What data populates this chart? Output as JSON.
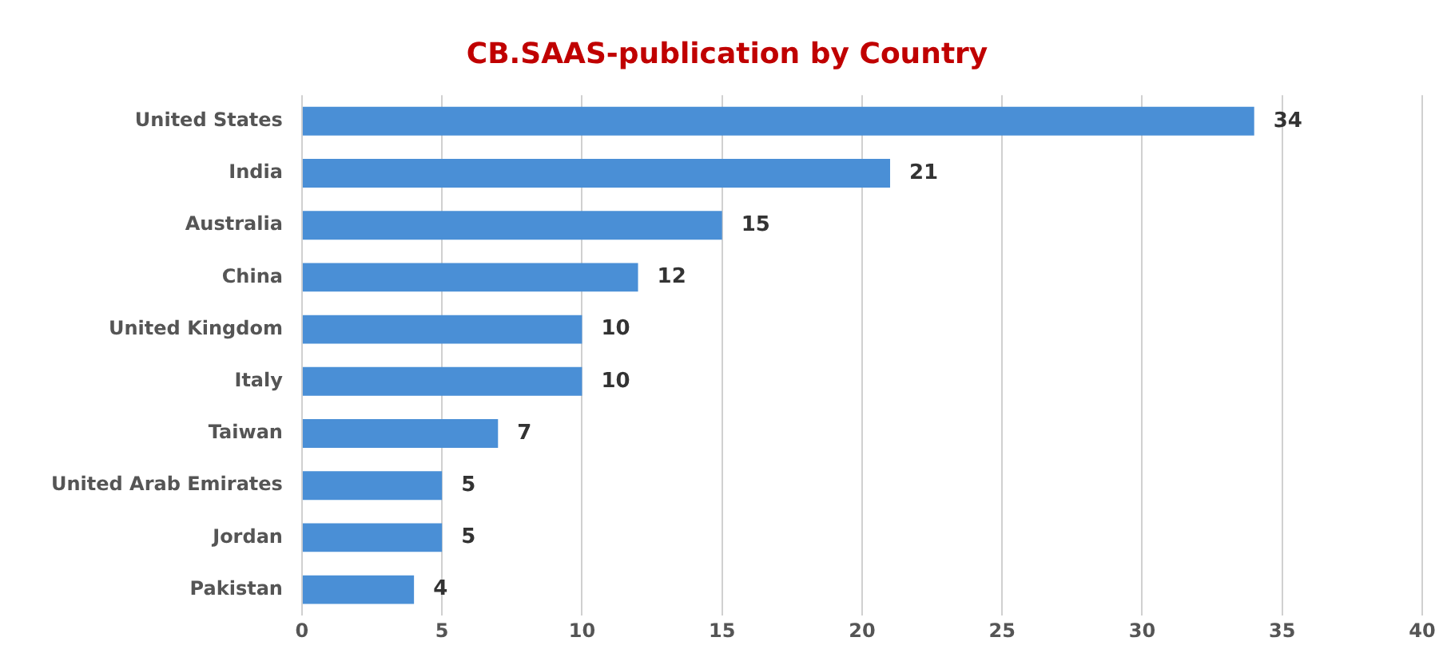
{
  "chart_data": {
    "type": "bar",
    "orientation": "horizontal",
    "title": "CB.SAAS-publication by Country",
    "categories": [
      "United States",
      "India",
      "Australia",
      "China",
      "United Kingdom",
      "Italy",
      "Taiwan",
      "United Arab Emirates",
      "Jordan",
      "Pakistan"
    ],
    "values": [
      34,
      21,
      15,
      12,
      10,
      10,
      7,
      5,
      5,
      4
    ],
    "color": "#4a8fd6",
    "xlim": [
      0,
      40
    ],
    "xticks": [
      0,
      5,
      10,
      15,
      20,
      25,
      30,
      35,
      40
    ],
    "grid": "x",
    "data_labels": true,
    "legend": false
  }
}
